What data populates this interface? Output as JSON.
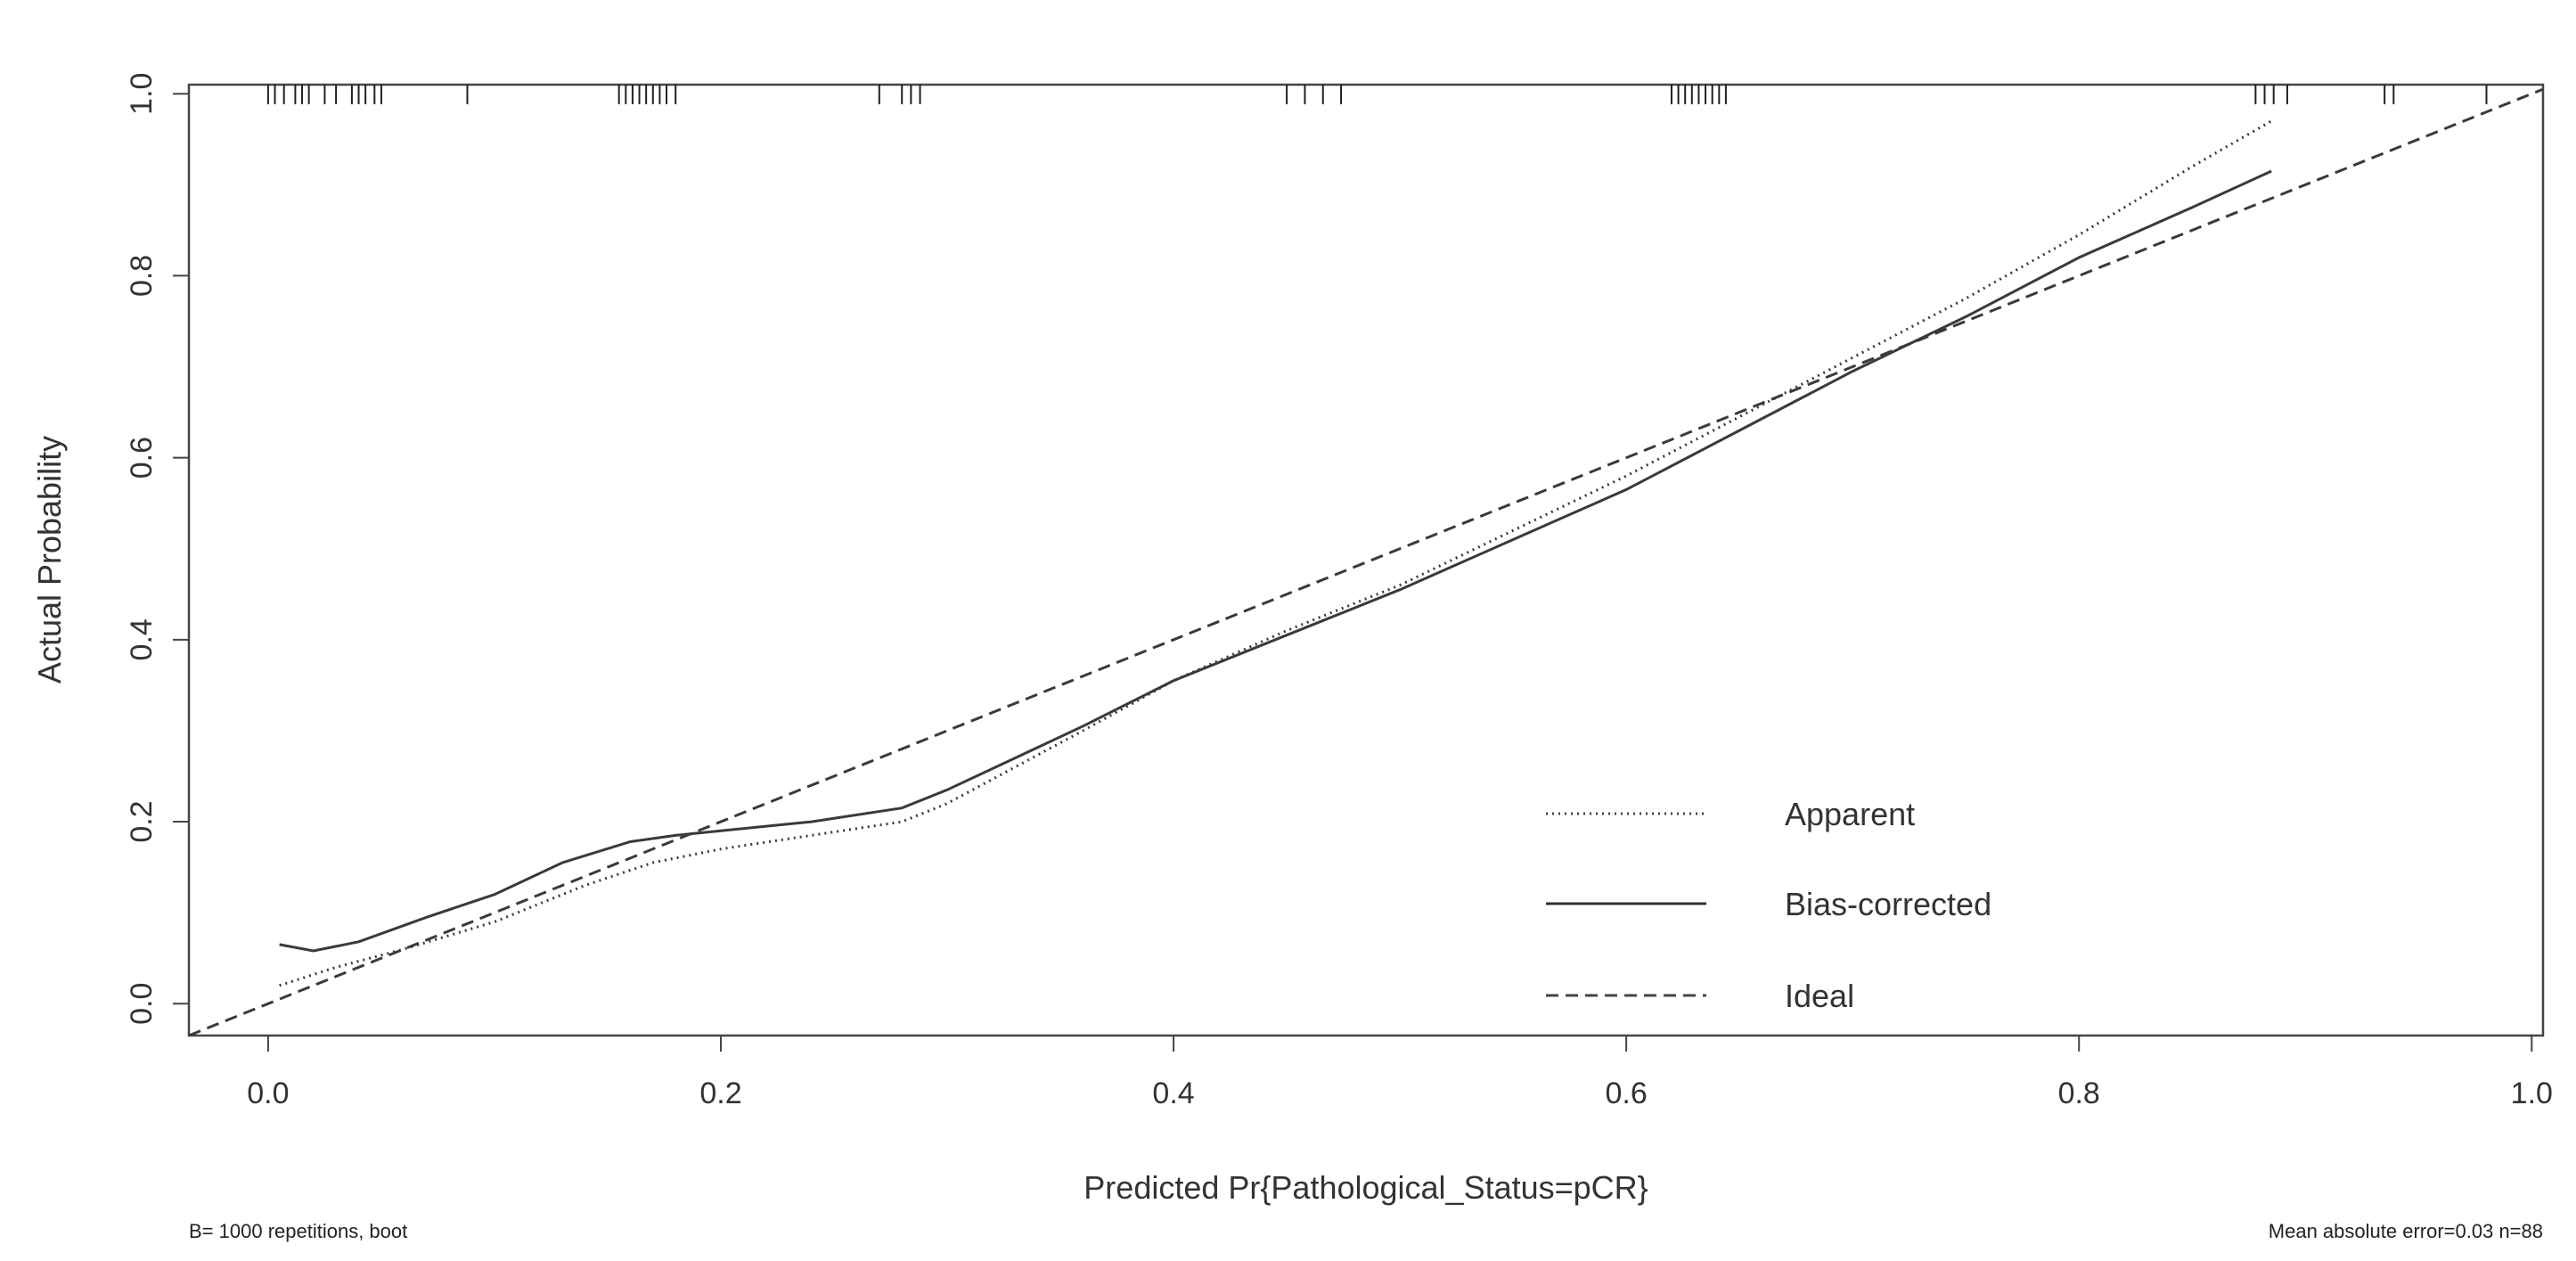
{
  "chart_data": {
    "type": "line",
    "xlabel": "Predicted Pr{Pathological_Status=pCR}",
    "ylabel": "Actual Probability",
    "xlim": [
      -0.035,
      1.005
    ],
    "ylim": [
      -0.035,
      1.01
    ],
    "x_ticks": [
      0.0,
      0.2,
      0.4,
      0.6,
      0.8,
      1.0
    ],
    "x_tick_labels": [
      "0.0",
      "0.2",
      "0.4",
      "0.6",
      "0.8",
      "1.0"
    ],
    "y_ticks": [
      0.0,
      0.2,
      0.4,
      0.6,
      0.8,
      1.0
    ],
    "y_tick_labels": [
      "0.0",
      "0.2",
      "0.4",
      "0.6",
      "0.8",
      "1.0"
    ],
    "grid": false,
    "legend_position": "bottom-right",
    "series": [
      {
        "name": "Apparent",
        "line_style": "dotted",
        "x": [
          0.005,
          0.03,
          0.06,
          0.1,
          0.14,
          0.17,
          0.2,
          0.24,
          0.28,
          0.3,
          0.33,
          0.36,
          0.4,
          0.45,
          0.5,
          0.55,
          0.6,
          0.65,
          0.7,
          0.75,
          0.8,
          0.85,
          0.885
        ],
        "y": [
          0.02,
          0.04,
          0.06,
          0.09,
          0.13,
          0.155,
          0.17,
          0.185,
          0.2,
          0.22,
          0.26,
          0.3,
          0.355,
          0.41,
          0.46,
          0.52,
          0.58,
          0.645,
          0.71,
          0.775,
          0.845,
          0.92,
          0.97
        ]
      },
      {
        "name": "Bias-corrected",
        "line_style": "solid",
        "x": [
          0.005,
          0.02,
          0.04,
          0.07,
          0.1,
          0.13,
          0.16,
          0.18,
          0.2,
          0.24,
          0.28,
          0.3,
          0.33,
          0.36,
          0.4,
          0.45,
          0.5,
          0.55,
          0.6,
          0.65,
          0.7,
          0.75,
          0.8,
          0.85,
          0.885
        ],
        "y": [
          0.065,
          0.058,
          0.068,
          0.095,
          0.12,
          0.155,
          0.178,
          0.185,
          0.19,
          0.2,
          0.215,
          0.235,
          0.27,
          0.305,
          0.355,
          0.405,
          0.455,
          0.51,
          0.565,
          0.63,
          0.695,
          0.755,
          0.82,
          0.875,
          0.915
        ]
      },
      {
        "name": "Ideal",
        "line_style": "dashed",
        "x": [
          -0.035,
          1.005
        ],
        "y": [
          -0.035,
          1.005
        ]
      }
    ],
    "rug_x": [
      0.0,
      0.003,
      0.007,
      0.012,
      0.015,
      0.018,
      0.025,
      0.03,
      0.037,
      0.04,
      0.043,
      0.047,
      0.05,
      0.088,
      0.155,
      0.158,
      0.161,
      0.164,
      0.167,
      0.17,
      0.173,
      0.176,
      0.18,
      0.27,
      0.28,
      0.284,
      0.288,
      0.45,
      0.458,
      0.466,
      0.474,
      0.62,
      0.623,
      0.626,
      0.629,
      0.632,
      0.635,
      0.638,
      0.641,
      0.644,
      0.878,
      0.882,
      0.886,
      0.892,
      0.935,
      0.939,
      0.98
    ]
  },
  "legend": {
    "items": [
      "Apparent",
      "Bias-corrected",
      "Ideal"
    ]
  },
  "footer": {
    "left": "B= 1000 repetitions, boot",
    "right": "Mean absolute error=0.03 n=88"
  }
}
